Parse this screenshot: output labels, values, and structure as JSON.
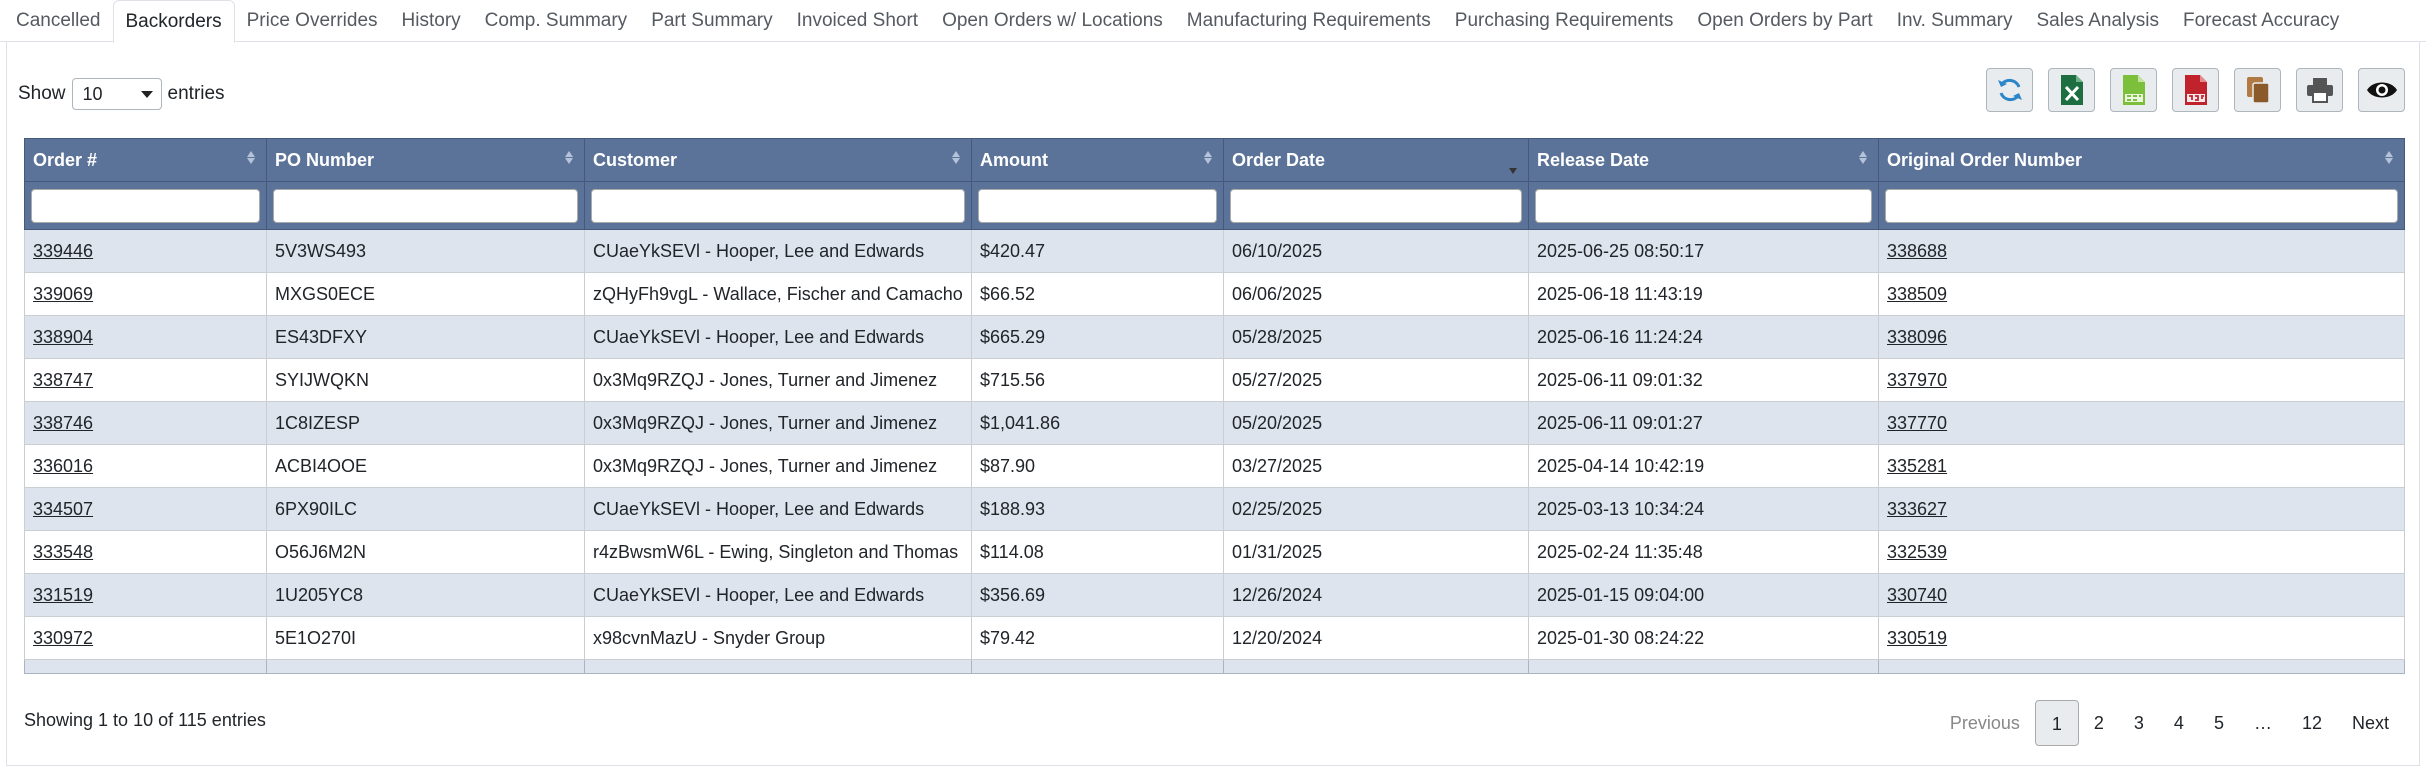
{
  "tabs": [
    {
      "label": "Cancelled",
      "active": false
    },
    {
      "label": "Backorders",
      "active": true
    },
    {
      "label": "Price Overrides",
      "active": false
    },
    {
      "label": "History",
      "active": false
    },
    {
      "label": "Comp. Summary",
      "active": false
    },
    {
      "label": "Part Summary",
      "active": false
    },
    {
      "label": "Invoiced Short",
      "active": false
    },
    {
      "label": "Open Orders w/ Locations",
      "active": false
    },
    {
      "label": "Manufacturing Requirements",
      "active": false
    },
    {
      "label": "Purchasing Requirements",
      "active": false
    },
    {
      "label": "Open Orders by Part",
      "active": false
    },
    {
      "label": "Inv. Summary",
      "active": false
    },
    {
      "label": "Sales Analysis",
      "active": false
    },
    {
      "label": "Forecast Accuracy",
      "active": false
    }
  ],
  "length_control": {
    "show_label": "Show",
    "value": "10",
    "entries_label": "entries"
  },
  "toolbar": {
    "refresh_icon": "refresh-icon",
    "excel_icon": "excel-file-icon",
    "csv_icon": "csv-file-icon",
    "pdf_icon": "pdf-file-icon",
    "copy_icon": "copy-icon",
    "print_icon": "print-icon",
    "columns_icon": "eye-icon"
  },
  "colors": {
    "header_bg": "#5c7399",
    "row_alt_bg": "#dde4ee",
    "excel": "#1d6f42",
    "csv": "#7cbf3b",
    "pdf": "#c0232c",
    "copy": "#8b5a2b"
  },
  "table": {
    "columns": [
      "Order #",
      "PO Number",
      "Customer",
      "Amount",
      "Order Date",
      "Release Date",
      "Original Order Number"
    ],
    "sorted_column": "Order Date",
    "sort_direction": "desc",
    "rows": [
      {
        "order": "339446",
        "po": "5V3WS493",
        "customer": "CUaeYkSEVl - Hooper, Lee and Edwards",
        "amount": "$420.47",
        "order_date": "06/10/2025",
        "release_date": "2025-06-25 08:50:17",
        "original": "338688"
      },
      {
        "order": "339069",
        "po": "MXGS0ECE",
        "customer": "zQHyFh9vgL - Wallace, Fischer and Camacho",
        "amount": "$66.52",
        "order_date": "06/06/2025",
        "release_date": "2025-06-18 11:43:19",
        "original": "338509"
      },
      {
        "order": "338904",
        "po": "ES43DFXY",
        "customer": "CUaeYkSEVl - Hooper, Lee and Edwards",
        "amount": "$665.29",
        "order_date": "05/28/2025",
        "release_date": "2025-06-16 11:24:24",
        "original": "338096"
      },
      {
        "order": "338747",
        "po": "SYIJWQKN",
        "customer": "0x3Mq9RZQJ - Jones, Turner and Jimenez",
        "amount": "$715.56",
        "order_date": "05/27/2025",
        "release_date": "2025-06-11 09:01:32",
        "original": "337970"
      },
      {
        "order": "338746",
        "po": "1C8IZESP",
        "customer": "0x3Mq9RZQJ - Jones, Turner and Jimenez",
        "amount": "$1,041.86",
        "order_date": "05/20/2025",
        "release_date": "2025-06-11 09:01:27",
        "original": "337770"
      },
      {
        "order": "336016",
        "po": "ACBI4OOE",
        "customer": "0x3Mq9RZQJ - Jones, Turner and Jimenez",
        "amount": "$87.90",
        "order_date": "03/27/2025",
        "release_date": "2025-04-14 10:42:19",
        "original": "335281"
      },
      {
        "order": "334507",
        "po": "6PX90ILC",
        "customer": "CUaeYkSEVl - Hooper, Lee and Edwards",
        "amount": "$188.93",
        "order_date": "02/25/2025",
        "release_date": "2025-03-13 10:34:24",
        "original": "333627"
      },
      {
        "order": "333548",
        "po": "O56J6M2N",
        "customer": "r4zBwsmW6L - Ewing, Singleton and Thomas",
        "amount": "$114.08",
        "order_date": "01/31/2025",
        "release_date": "2025-02-24 11:35:48",
        "original": "332539"
      },
      {
        "order": "331519",
        "po": "1U205YC8",
        "customer": "CUaeYkSEVl - Hooper, Lee and Edwards",
        "amount": "$356.69",
        "order_date": "12/26/2024",
        "release_date": "2025-01-15 09:04:00",
        "original": "330740"
      },
      {
        "order": "330972",
        "po": "5E1O270I",
        "customer": "x98cvnMazU - Snyder Group",
        "amount": "$79.42",
        "order_date": "12/20/2024",
        "release_date": "2025-01-30 08:24:22",
        "original": "330519"
      }
    ]
  },
  "info_text": "Showing 1 to 10 of 115 entries",
  "pagination": {
    "previous": "Previous",
    "pages": [
      "1",
      "2",
      "3",
      "4",
      "5",
      "…",
      "12"
    ],
    "current": "1",
    "next": "Next"
  }
}
